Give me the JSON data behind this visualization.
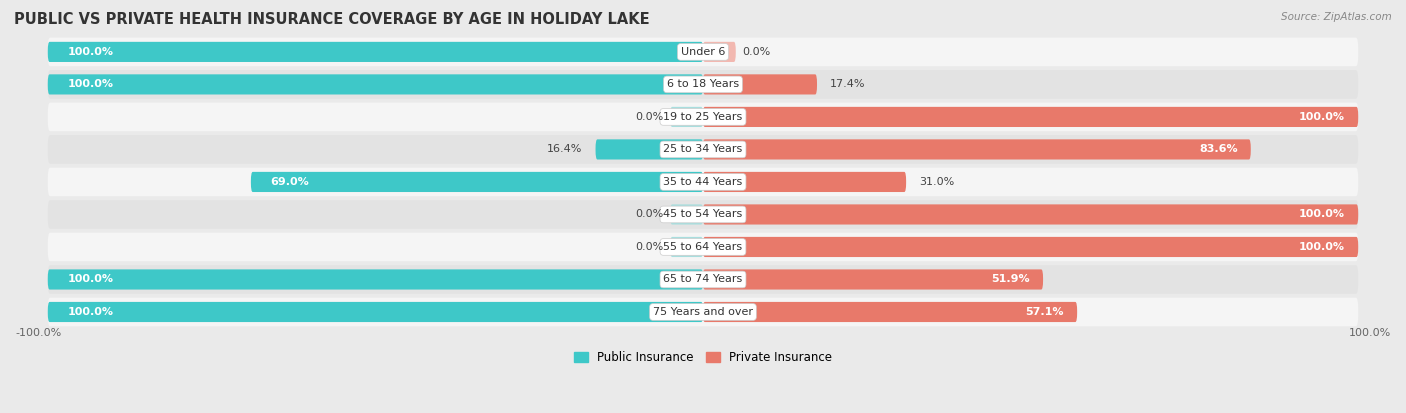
{
  "title": "PUBLIC VS PRIVATE HEALTH INSURANCE COVERAGE BY AGE IN HOLIDAY LAKE",
  "source": "Source: ZipAtlas.com",
  "categories": [
    "Under 6",
    "6 to 18 Years",
    "19 to 25 Years",
    "25 to 34 Years",
    "35 to 44 Years",
    "45 to 54 Years",
    "55 to 64 Years",
    "65 to 74 Years",
    "75 Years and over"
  ],
  "public_values": [
    100.0,
    100.0,
    0.0,
    16.4,
    69.0,
    0.0,
    0.0,
    100.0,
    100.0
  ],
  "private_values": [
    0.0,
    17.4,
    100.0,
    83.6,
    31.0,
    100.0,
    100.0,
    51.9,
    57.1
  ],
  "public_color": "#3ec8c8",
  "private_color": "#e8796a",
  "public_color_light": "#a8dede",
  "private_color_light": "#f2b8b0",
  "bg_color": "#eaeaea",
  "row_bg_light": "#f5f5f5",
  "row_bg_dark": "#e3e3e3",
  "bar_height": 0.62,
  "label_fontsize": 8.0,
  "title_fontsize": 10.5,
  "source_fontsize": 7.5,
  "axis_label_fontsize": 8.0,
  "legend_fontsize": 8.5
}
